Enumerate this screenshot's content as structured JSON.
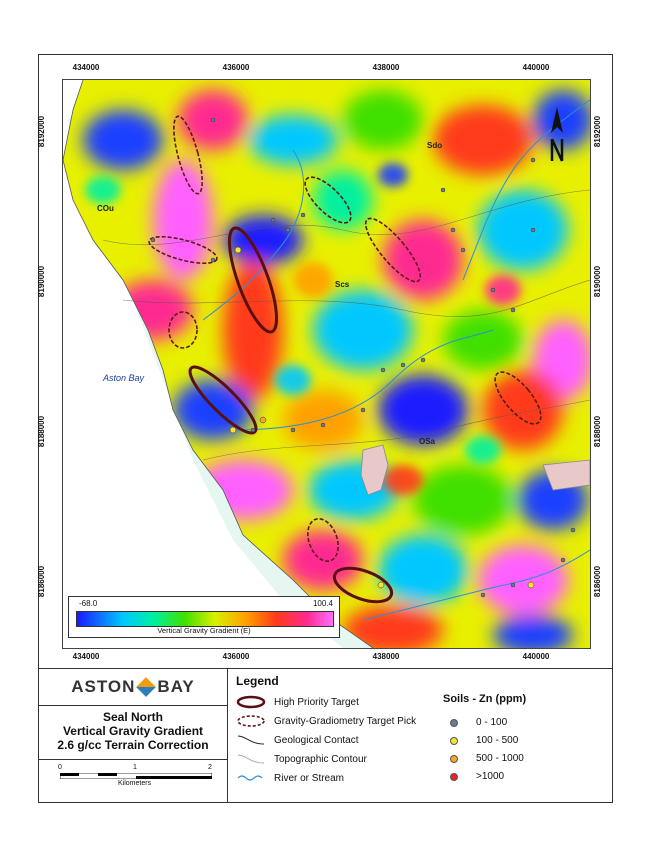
{
  "map": {
    "x_ticks": [
      "434000",
      "436000",
      "438000",
      "440000"
    ],
    "y_ticks": [
      "8192000",
      "8190000",
      "8188000",
      "8186000"
    ],
    "unit_labels": [
      "Sdo",
      "COu",
      "Scs",
      "OSa"
    ],
    "bay_label": "Aston Bay"
  },
  "colorbar": {
    "min": "-68.0",
    "max": "100.4",
    "title": "Vertical Gravity Gradient (E)"
  },
  "brand": {
    "name_left": "ASTON",
    "name_right": "BAY"
  },
  "title": {
    "line1": "Seal North",
    "line2": "Vertical Gravity Gradient",
    "line3": "2.6 g/cc Terrain Correction"
  },
  "scale": {
    "labels": [
      "0",
      "1",
      "2"
    ],
    "unit": "Kilometers"
  },
  "legend": {
    "title": "Legend",
    "items": [
      "High Priority Target",
      "Gravity-Gradiometry Target Pick",
      "Geological Contact",
      "Topographic Contour",
      "River or Stream"
    ]
  },
  "soils": {
    "title": "Soils - Zn (ppm)",
    "items": [
      {
        "label": "0 - 100",
        "color": "#6b7a8f"
      },
      {
        "label": "100 - 500",
        "color": "#f5e52a"
      },
      {
        "label": "500 - 1000",
        "color": "#f5a623"
      },
      {
        "label": ">1000",
        "color": "#ee2222"
      }
    ]
  },
  "colors": {
    "stream": "#2b8fd6",
    "target_high": "#5a1010",
    "target_pick": "#5a1a1a"
  }
}
